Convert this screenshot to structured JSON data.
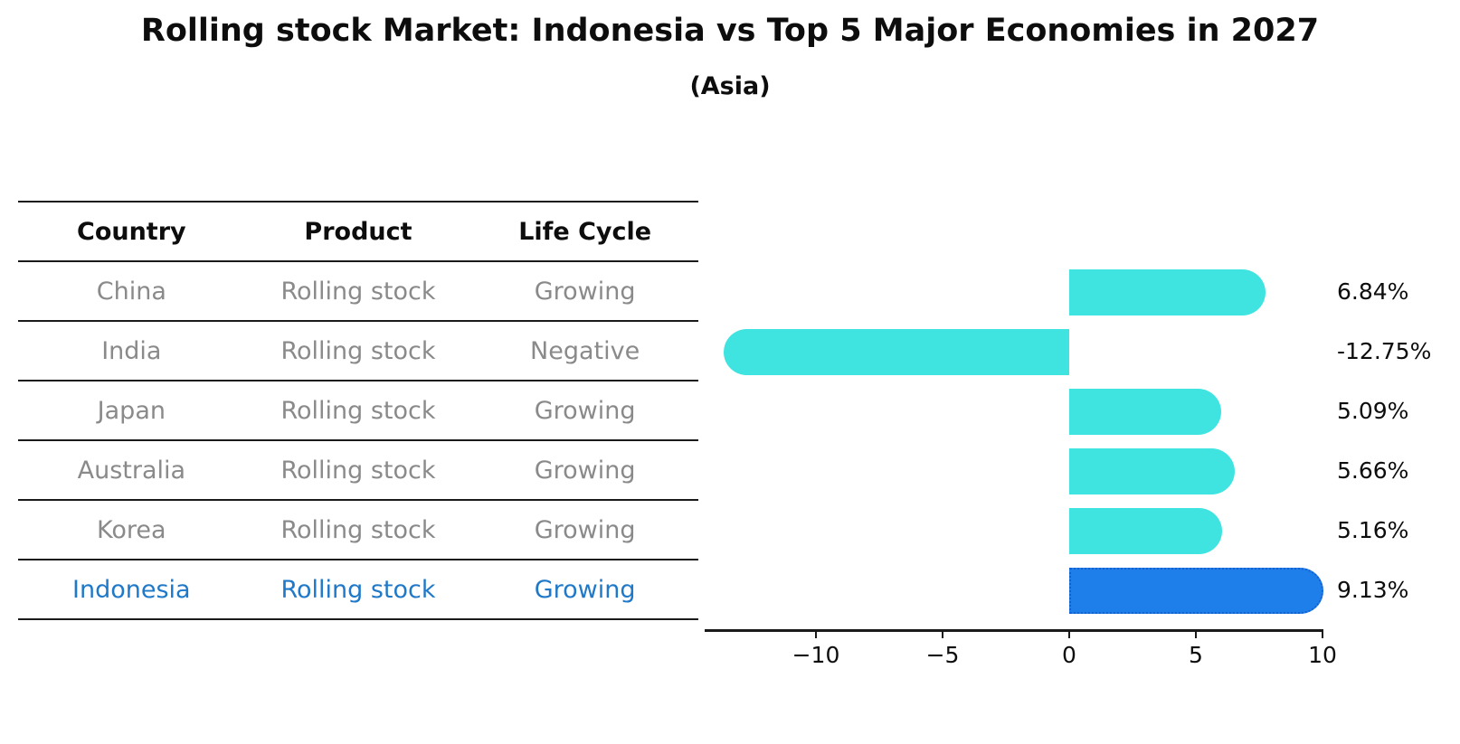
{
  "title": "Rolling stock Market: Indonesia vs Top 5 Major Economies in 2027",
  "subtitle": "(Asia)",
  "table": {
    "headers": [
      "Country",
      "Product",
      "Life Cycle"
    ],
    "rows": [
      {
        "country": "China",
        "product": "Rolling stock",
        "life_cycle": "Growing",
        "highlighted": false
      },
      {
        "country": "India",
        "product": "Rolling stock",
        "life_cycle": "Negative",
        "highlighted": false
      },
      {
        "country": "Japan",
        "product": "Rolling stock",
        "life_cycle": "Growing",
        "highlighted": false
      },
      {
        "country": "Australia",
        "product": "Rolling stock",
        "life_cycle": "Growing",
        "highlighted": false
      },
      {
        "country": "Korea",
        "product": "Rolling stock",
        "life_cycle": "Growing",
        "highlighted": false
      },
      {
        "country": "Indonesia",
        "product": "Rolling stock",
        "life_cycle": "Growing",
        "highlighted": true
      }
    ]
  },
  "chart_data": {
    "type": "bar",
    "orientation": "horizontal",
    "title": "Rolling stock Market: Indonesia vs Top 5 Major Economies in 2027 (Asia)",
    "categories": [
      "China",
      "India",
      "Japan",
      "Australia",
      "Korea",
      "Indonesia"
    ],
    "values": [
      6.84,
      -12.75,
      5.09,
      5.66,
      5.16,
      9.13
    ],
    "value_labels": [
      "6.84%",
      "-12.75%",
      "5.09%",
      "5.66%",
      "5.16%",
      "9.13%"
    ],
    "xticks": [
      -10,
      -5,
      0,
      5,
      10
    ],
    "xtick_labels": [
      "−10",
      "−5",
      "0",
      "5",
      "10"
    ],
    "xlim": [
      -14.4,
      10.05
    ],
    "grid": false,
    "legend": false,
    "bar_color": "#3fe4e0",
    "highlight_index": 5,
    "highlight_bar_color": "#1e7fea",
    "highlight_border_color": "#1560d0"
  },
  "colors": {
    "text": "#0d0d0d",
    "table_text": "#8a8a8a",
    "highlight_text": "#1f78c8",
    "line": "#1a1a1a"
  }
}
